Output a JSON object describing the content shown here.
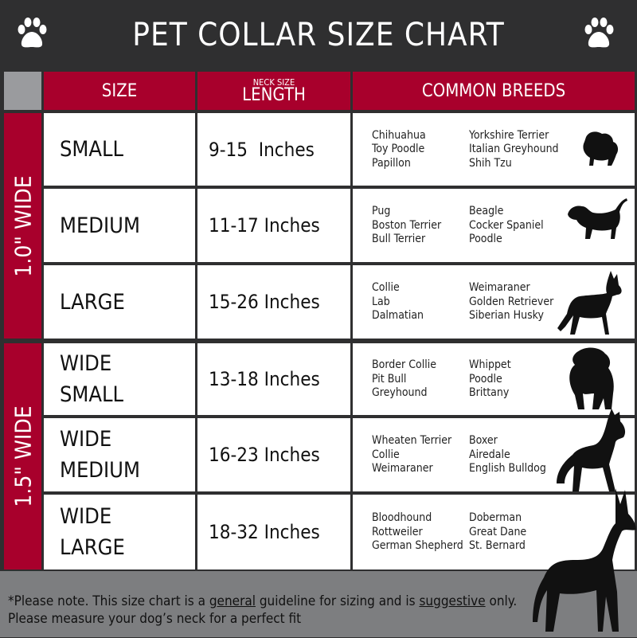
{
  "title": "PET COLLAR SIZE CHART",
  "icons": {
    "left": "paw-icon",
    "right": "paw-icon"
  },
  "colors": {
    "header_red": "#a8002c",
    "title_bg": "#2f2f30",
    "footer_gray": "#7d7e80"
  },
  "headers": {
    "size": "SIZE",
    "length_small": "NECK SIZE",
    "length": "LENGTH",
    "breeds": "COMMON BREEDS"
  },
  "groups": [
    {
      "label": "1.0\" WIDE"
    },
    {
      "label": "1.5\" WIDE"
    }
  ],
  "rows": [
    {
      "size": [
        "SMALL"
      ],
      "length": "9-15  Inches",
      "breeds_a": [
        "Chihuahua",
        "Toy Poodle",
        "Papillon"
      ],
      "breeds_b": [
        "Yorkshire Terrier",
        "Italian Greyhound",
        "Shih Tzu"
      ],
      "icon": "small-dog-icon"
    },
    {
      "size": [
        "MEDIUM"
      ],
      "length": "11-17 Inches",
      "breeds_a": [
        "Pug",
        "Boston Terrier",
        "Bull Terrier"
      ],
      "breeds_b": [
        "Beagle",
        "Cocker Spaniel",
        "Poodle"
      ],
      "icon": "dachshund-icon"
    },
    {
      "size": [
        "LARGE"
      ],
      "length": "15-26 Inches",
      "breeds_a": [
        "Collie",
        "Lab",
        "Dalmatian"
      ],
      "breeds_b": [
        "Weimaraner",
        "Golden Retriever",
        "Siberian Husky"
      ],
      "icon": "shepherd-dog-icon"
    },
    {
      "size": [
        "WIDE",
        "SMALL"
      ],
      "length": "13-18 Inches",
      "breeds_a": [
        "Border Collie",
        "Pit Bull",
        "Greyhound"
      ],
      "breeds_b": [
        "Whippet",
        "Poodle",
        "Brittany"
      ],
      "icon": "bulldog-icon"
    },
    {
      "size": [
        "WIDE",
        "MEDIUM"
      ],
      "length": "16-23 Inches",
      "breeds_a": [
        "Wheaten Terrier",
        "Collie",
        "Weimaraner"
      ],
      "breeds_b": [
        "Boxer",
        "Airedale",
        "English Bulldog"
      ],
      "icon": "pitbull-icon"
    },
    {
      "size": [
        "WIDE",
        "LARGE"
      ],
      "length": "18-32 Inches",
      "breeds_a": [
        "Bloodhound",
        "Rottweiler",
        "German Shepherd"
      ],
      "breeds_b": [
        "Doberman",
        "Great Dane",
        "St. Bernard"
      ],
      "icon": "doberman-icon"
    }
  ],
  "footer": {
    "p1": "*Please note. This size chart is a ",
    "u1": "general",
    "p2": " guideline for sizing and is ",
    "u2": "suggestive",
    "p3": " only.",
    "line2": "Please measure your dog’s neck for a perfect fit"
  }
}
